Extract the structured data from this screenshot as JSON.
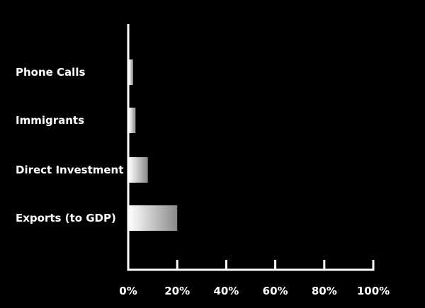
{
  "chart_data": {
    "type": "bar",
    "orientation": "horizontal",
    "categories": [
      "Phone Calls",
      "Immigrants",
      "Direct Investment",
      "Exports (to GDP)"
    ],
    "values": [
      2,
      3,
      8,
      20
    ],
    "xlim": [
      0,
      100
    ],
    "ticks": [
      0,
      20,
      40,
      60,
      80,
      100
    ],
    "tick_labels": [
      "0%",
      "20%",
      "40%",
      "60%",
      "80%",
      "100%"
    ],
    "grid": false,
    "legend": "none"
  },
  "colors": {
    "background": "#000000",
    "axis": "#ffffff",
    "bar_light": "#ffffff",
    "bar_dark": "#8a8a8a",
    "text": "#ffffff"
  }
}
